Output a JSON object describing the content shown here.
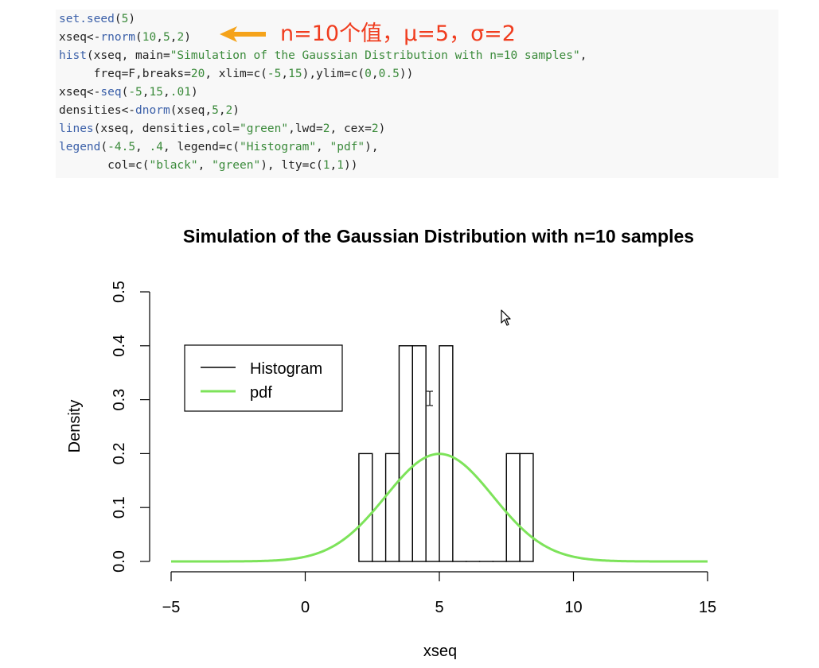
{
  "code": {
    "lines": [
      [
        [
          "set.seed",
          "#3a5fa8"
        ],
        [
          "(",
          "#222222"
        ],
        [
          "5",
          "#3a8a3a"
        ],
        [
          ")",
          "#222222"
        ]
      ],
      [
        [
          "xseq<-",
          "#222222"
        ],
        [
          "rnorm",
          "#3a5fa8"
        ],
        [
          "(",
          "#222222"
        ],
        [
          "10",
          "#3a8a3a"
        ],
        [
          ",",
          "#222222"
        ],
        [
          "5",
          "#3a8a3a"
        ],
        [
          ",",
          "#222222"
        ],
        [
          "2",
          "#3a8a3a"
        ],
        [
          ")",
          "#222222"
        ]
      ],
      [
        [
          "hist",
          "#3a5fa8"
        ],
        [
          "(xseq, main=",
          "#222222"
        ],
        [
          "\"Simulation of the Gaussian Distribution with n=10 samples\"",
          "#3a8a3a"
        ],
        [
          ",",
          "#222222"
        ]
      ],
      [
        [
          "     freq=F,breaks=",
          "#222222"
        ],
        [
          "20",
          "#3a8a3a"
        ],
        [
          ", xlim=c(",
          "#222222"
        ],
        [
          "-5",
          "#3a8a3a"
        ],
        [
          ",",
          "#222222"
        ],
        [
          "15",
          "#3a8a3a"
        ],
        [
          "),ylim=c(",
          "#222222"
        ],
        [
          "0",
          "#3a8a3a"
        ],
        [
          ",",
          "#222222"
        ],
        [
          "0.5",
          "#3a8a3a"
        ],
        [
          "))",
          "#222222"
        ]
      ],
      [
        [
          "xseq<-",
          "#222222"
        ],
        [
          "seq",
          "#3a5fa8"
        ],
        [
          "(",
          "#222222"
        ],
        [
          "-5",
          "#3a8a3a"
        ],
        [
          ",",
          "#222222"
        ],
        [
          "15",
          "#3a8a3a"
        ],
        [
          ",",
          "#222222"
        ],
        [
          ".01",
          "#3a8a3a"
        ],
        [
          ")",
          "#222222"
        ]
      ],
      [
        [
          "densities<-",
          "#222222"
        ],
        [
          "dnorm",
          "#3a5fa8"
        ],
        [
          "(xseq,",
          "#222222"
        ],
        [
          "5",
          "#3a8a3a"
        ],
        [
          ",",
          "#222222"
        ],
        [
          "2",
          "#3a8a3a"
        ],
        [
          ")",
          "#222222"
        ]
      ],
      [
        [
          "lines",
          "#3a5fa8"
        ],
        [
          "(xseq, densities,col=",
          "#222222"
        ],
        [
          "\"green\"",
          "#3a8a3a"
        ],
        [
          ",lwd=",
          "#222222"
        ],
        [
          "2",
          "#3a8a3a"
        ],
        [
          ", cex=",
          "#222222"
        ],
        [
          "2",
          "#3a8a3a"
        ],
        [
          ")",
          "#222222"
        ]
      ],
      [
        [
          "legend",
          "#3a5fa8"
        ],
        [
          "(",
          "#222222"
        ],
        [
          "-4.5",
          "#3a8a3a"
        ],
        [
          ", ",
          ""
        ],
        [
          ".4",
          "#3a8a3a"
        ],
        [
          ", legend=c(",
          "#222222"
        ],
        [
          "\"Histogram\"",
          "#3a8a3a"
        ],
        [
          ", ",
          "#222222"
        ],
        [
          "\"pdf\"",
          "#3a8a3a"
        ],
        [
          "),",
          "#222222"
        ]
      ],
      [
        [
          "       col=c(",
          "#222222"
        ],
        [
          "\"black\"",
          "#3a8a3a"
        ],
        [
          ", ",
          "#222222"
        ],
        [
          "\"green\"",
          "#3a8a3a"
        ],
        [
          "), lty=c(",
          "#222222"
        ],
        [
          "1",
          "#3a8a3a"
        ],
        [
          ",",
          "#222222"
        ],
        [
          "1",
          "#3a8a3a"
        ],
        [
          "))",
          "#222222"
        ]
      ]
    ]
  },
  "annotation": {
    "text": "n=10个值，μ=5，σ=2",
    "color": "#f03c1e",
    "arrow_color": "#f5a31a"
  },
  "icons": {
    "cursor": "mouse-pointer-icon",
    "text_cursor": "i-beam-cursor-icon"
  },
  "chart_data": {
    "type": "bar",
    "title": "Simulation of the Gaussian Distribution with n=10 samples",
    "xlabel": "xseq",
    "ylabel": "Density",
    "xlim": [
      -5,
      15
    ],
    "ylim": [
      0,
      0.5
    ],
    "x_ticks": [
      -5,
      0,
      5,
      10,
      15
    ],
    "y_ticks": [
      0.0,
      0.1,
      0.2,
      0.3,
      0.4,
      0.5
    ],
    "y_tick_labels": [
      "0.0",
      "0.1",
      "0.2",
      "0.3",
      "0.4",
      "0.5"
    ],
    "bin_width": 0.5,
    "bins": [
      {
        "x0": 2.0,
        "x1": 2.5,
        "density": 0.2
      },
      {
        "x0": 2.5,
        "x1": 3.0,
        "density": 0.0
      },
      {
        "x0": 3.0,
        "x1": 3.5,
        "density": 0.2
      },
      {
        "x0": 3.5,
        "x1": 4.0,
        "density": 0.4
      },
      {
        "x0": 4.0,
        "x1": 4.5,
        "density": 0.4
      },
      {
        "x0": 4.5,
        "x1": 5.0,
        "density": 0.0
      },
      {
        "x0": 5.0,
        "x1": 5.5,
        "density": 0.4
      },
      {
        "x0": 5.5,
        "x1": 6.0,
        "density": 0.0
      },
      {
        "x0": 6.0,
        "x1": 6.5,
        "density": 0.0
      },
      {
        "x0": 6.5,
        "x1": 7.0,
        "density": 0.0
      },
      {
        "x0": 7.0,
        "x1": 7.5,
        "density": 0.0
      },
      {
        "x0": 7.5,
        "x1": 8.0,
        "density": 0.2
      },
      {
        "x0": 8.0,
        "x1": 8.5,
        "density": 0.2
      }
    ],
    "series": [
      {
        "name": "Histogram",
        "color": "#000000"
      },
      {
        "name": "pdf",
        "color": "#7de35a",
        "mean": 5,
        "sd": 2
      }
    ],
    "legend": {
      "position": "top-left",
      "entries": [
        "Histogram",
        "pdf"
      ]
    },
    "grid": false
  }
}
